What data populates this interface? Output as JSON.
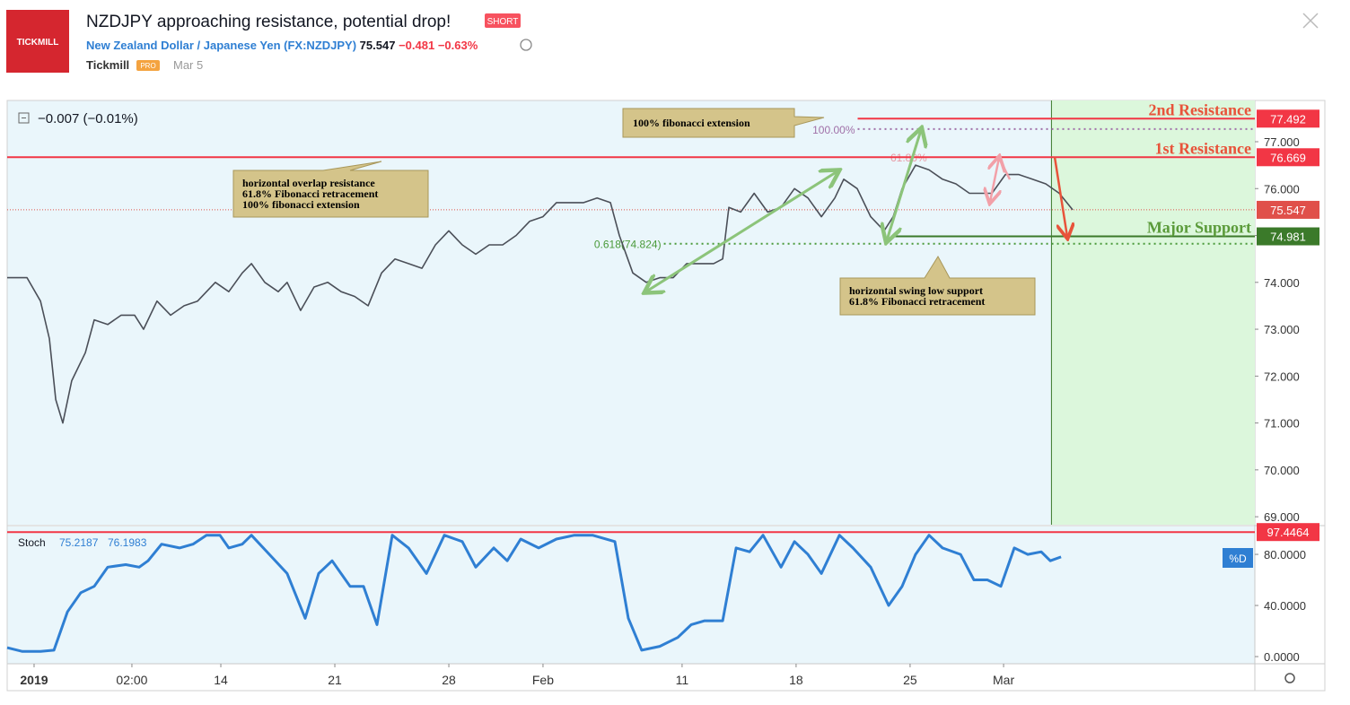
{
  "header": {
    "logo": "TICKMILL",
    "title": "NZDJPY approaching resistance, potential drop!",
    "badge": "SHORT",
    "symbol_name": "New Zealand Dollar / Japanese Yen",
    "symbol": "(FX:NZDJPY)",
    "price": "75.547",
    "change": "−0.481",
    "change_pct": "−0.63%",
    "author": "Tickmill",
    "author_badge": "PRO",
    "date": "Mar 5"
  },
  "chart_data": [
    {
      "type": "line",
      "legend_text": "−0.007 (−0.01%)",
      "x": [
        0,
        0.87,
        1.46,
        1.85,
        2.13,
        2.44,
        2.83,
        3.43,
        3.82,
        4.41,
        5.0,
        5.59,
        5.98,
        6.57,
        7.17,
        7.76,
        8.35,
        9.13,
        9.72,
        10.31,
        10.71,
        11.3,
        11.89,
        12.28,
        12.87,
        13.46,
        14.06,
        14.65,
        15.24,
        15.83,
        16.42,
        17.01,
        17.6,
        18.19,
        18.78,
        19.37,
        19.96,
        20.55,
        21.14,
        21.73,
        22.32,
        22.91,
        23.5,
        24.09,
        24.69,
        25.28,
        25.87,
        26.46,
        26.85,
        27.44,
        28.03,
        28.62,
        29.21,
        29.8,
        30.39,
        30.98,
        31.38,
        31.65,
        32.17,
        32.76,
        33.35,
        33.94,
        34.53,
        35.12,
        35.71,
        36.3,
        36.69,
        37.28,
        37.87,
        38.46,
        38.86,
        39.25,
        39.84,
        40.43,
        41.02,
        41.61,
        42.2,
        42.8,
        43.19,
        43.78,
        44.37,
        44.96,
        45.55,
        46.14,
        46.73
      ],
      "series": [
        {
          "name": "NZDJPY",
          "color": "#4b4f58",
          "values": [
            74.1,
            74.1,
            73.6,
            72.8,
            71.5,
            71.0,
            71.9,
            72.5,
            73.2,
            73.1,
            73.3,
            73.3,
            73.0,
            73.6,
            73.3,
            73.5,
            73.6,
            74.0,
            73.8,
            74.2,
            74.4,
            74.0,
            73.8,
            74.0,
            73.4,
            73.9,
            74.0,
            73.8,
            73.7,
            73.5,
            74.2,
            74.5,
            74.4,
            74.3,
            74.8,
            75.1,
            74.8,
            74.6,
            74.8,
            74.8,
            75.0,
            75.3,
            75.4,
            75.7,
            75.7,
            75.7,
            75.8,
            75.7,
            75.0,
            74.2,
            74.0,
            74.1,
            74.1,
            74.4,
            74.4,
            74.4,
            74.5,
            75.6,
            75.5,
            75.9,
            75.5,
            75.6,
            76.0,
            75.8,
            75.4,
            75.8,
            76.2,
            76.0,
            75.4,
            75.1,
            75.4,
            76.0,
            76.5,
            76.4,
            76.2,
            76.1,
            75.9,
            75.9,
            75.9,
            76.3,
            76.3,
            76.2,
            76.1,
            75.9,
            75.547
          ]
        }
      ],
      "xlim": [
        0,
        54.72
      ],
      "ylim": [
        68.83,
        77.88
      ],
      "yticks": [
        {
          "value": 69,
          "label": "69.000"
        },
        {
          "value": 70,
          "label": "70.000"
        },
        {
          "value": 71,
          "label": "71.000"
        },
        {
          "value": 72,
          "label": "72.000"
        },
        {
          "value": 73,
          "label": "73.000"
        },
        {
          "value": 74,
          "label": "74.000"
        },
        {
          "value": 75,
          "label": "75.000"
        },
        {
          "value": 76,
          "label": "76.000"
        },
        {
          "value": 77,
          "label": "77.000"
        }
      ],
      "xticks": [
        {
          "value": 1.18,
          "label": "2019"
        },
        {
          "value": 5.47,
          "label": "02:00"
        },
        {
          "value": 9.37,
          "label": "14"
        },
        {
          "value": 14.37,
          "label": "21"
        },
        {
          "value": 19.37,
          "label": "28"
        },
        {
          "value": 23.5,
          "label": "Feb"
        },
        {
          "value": 29.6,
          "label": "11"
        },
        {
          "value": 34.6,
          "label": "18"
        },
        {
          "value": 39.6,
          "label": "25"
        },
        {
          "value": 43.7,
          "label": "Mar"
        }
      ],
      "grid": false,
      "highlight_start": 45.8,
      "last_price": 75.547,
      "hlines": [
        {
          "name": "2nd Resistance",
          "value": 77.492,
          "color": "#f23645",
          "label_color": "#e8533a",
          "x_from": 37.3
        },
        {
          "name": "1st Resistance",
          "value": 76.669,
          "color": "#f23645",
          "label_color": "#e8533a",
          "x_from": 0
        },
        {
          "name": "Major Support",
          "value": 74.981,
          "color": "#3b7a2a",
          "label_color": "#5b9b3a",
          "x_from": 38.8
        }
      ],
      "fib_levels": [
        {
          "label": "100.00%",
          "value": 77.27,
          "color": "#a070a8",
          "x_from": 37.3
        },
        {
          "label": "0.618(74.824)",
          "value": 74.824,
          "color": "#4a9a3a",
          "x_from": 28.8
        }
      ],
      "fib_note": "61.80%",
      "notes": [
        {
          "lines": [
            "100% fibonacci extension"
          ]
        },
        {
          "lines": [
            "horizontal overlap resistance",
            "61.8% Fibonacci retracement",
            "100% fibonacci extension"
          ]
        },
        {
          "lines": [
            "horizontal swing low support",
            "61.8% Fibonacci retracement"
          ]
        }
      ]
    },
    {
      "type": "line",
      "name": "Stoch",
      "legend_values": [
        75.2187,
        76.1983
      ],
      "badge": "%D",
      "x": [
        0,
        0.67,
        1.46,
        2.05,
        2.64,
        3.23,
        3.82,
        4.41,
        5.2,
        5.79,
        6.18,
        6.77,
        7.56,
        8.15,
        8.74,
        9.33,
        9.72,
        10.31,
        10.71,
        11.5,
        12.28,
        13.07,
        13.66,
        14.25,
        15.04,
        15.63,
        16.22,
        16.89,
        17.6,
        18.39,
        19.17,
        19.96,
        20.55,
        21.34,
        21.93,
        22.52,
        23.31,
        24.09,
        24.88,
        25.67,
        26.65,
        27.24,
        27.83,
        28.62,
        29.41,
        30.0,
        30.59,
        31.38,
        31.97,
        32.56,
        33.15,
        33.94,
        34.53,
        35.12,
        35.71,
        36.5,
        37.09,
        37.87,
        38.66,
        39.25,
        39.84,
        40.43,
        41.02,
        41.81,
        42.4,
        42.99,
        43.58,
        44.17,
        44.76,
        45.35,
        45.75,
        46.22
      ],
      "series": [
        {
          "name": "%D",
          "color": "#2f7fd3",
          "values": [
            7,
            4,
            4,
            5,
            35,
            50,
            55,
            70,
            72,
            70,
            75,
            88,
            85,
            88,
            95,
            95,
            85,
            88,
            95,
            80,
            65,
            30,
            65,
            75,
            55,
            55,
            25,
            95,
            85,
            65,
            95,
            90,
            70,
            85,
            75,
            92,
            85,
            92,
            95,
            95,
            90,
            30,
            5,
            8,
            15,
            25,
            28,
            28,
            85,
            82,
            95,
            70,
            90,
            80,
            65,
            95,
            85,
            70,
            40,
            55,
            80,
            95,
            85,
            80,
            60,
            60,
            55,
            85,
            80,
            82,
            75,
            78
          ]
        }
      ],
      "xlim": [
        0,
        54.72
      ],
      "ylim": [
        -5.6,
        101.8
      ],
      "yticks": [
        {
          "value": 0,
          "label": "0.0000"
        },
        {
          "value": 40,
          "label": "40.0000"
        },
        {
          "value": 80,
          "label": "80.0000"
        }
      ],
      "hline": {
        "value": 97.4464,
        "color": "#f23645"
      }
    }
  ]
}
